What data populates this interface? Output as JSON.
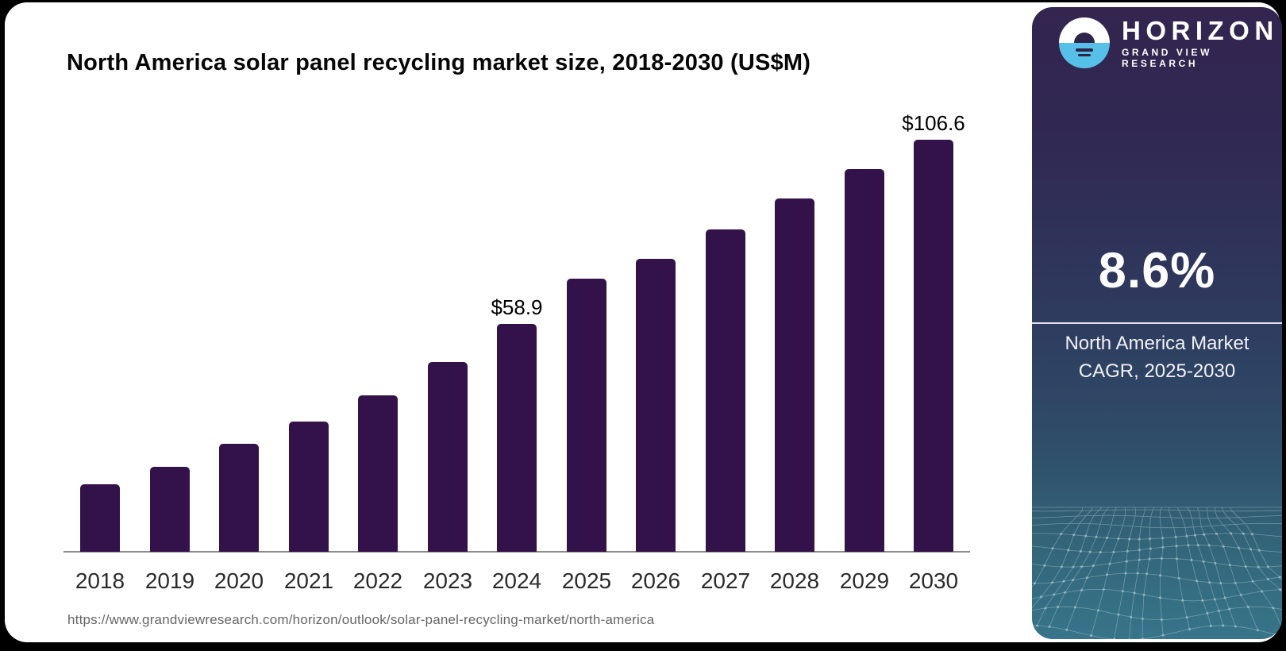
{
  "header": {
    "title": "North America solar panel recycling market size, 2018-2030 (US$M)"
  },
  "chart_data": {
    "type": "bar",
    "title": "North America solar panel recycling market size, 2018-2030 (US$M)",
    "unit": "US$M",
    "categories": [
      "2018",
      "2019",
      "2020",
      "2021",
      "2022",
      "2023",
      "2024",
      "2025",
      "2026",
      "2027",
      "2028",
      "2029",
      "2030"
    ],
    "values": [
      17.5,
      22.0,
      27.9,
      33.7,
      40.4,
      49.0,
      58.9,
      70.7,
      75.8,
      83.3,
      91.5,
      99.0,
      106.6
    ],
    "value_labels": {
      "2024": "$58.9",
      "2030": "$106.6"
    },
    "bar_color": "#33124a",
    "axis_line_color": "#8c8c8c",
    "ylim": [
      0,
      112
    ],
    "grid": "off",
    "legend": "none"
  },
  "sidebar": {
    "logo": {
      "brand": "HORIZON",
      "sub_brand": "GRAND VIEW RESEARCH",
      "icon": "horizon-sun-circle-icon",
      "logo_blue": "#57c0e8",
      "logo_dark": "#2e2349"
    },
    "cagr_value": "8.6%",
    "cagr_caption_line1": "North America Market",
    "cagr_caption_line2": "CAGR, 2025-2030",
    "colors": {
      "gradient_top": "#332550",
      "gradient_mid": "#2e3a5e",
      "gradient_bottom": "#37758a",
      "mesh_line": "#a6c6d0"
    }
  },
  "footer": {
    "source_url": "https://www.grandviewresearch.com/horizon/outlook/solar-panel-recycling-market/north-america"
  }
}
